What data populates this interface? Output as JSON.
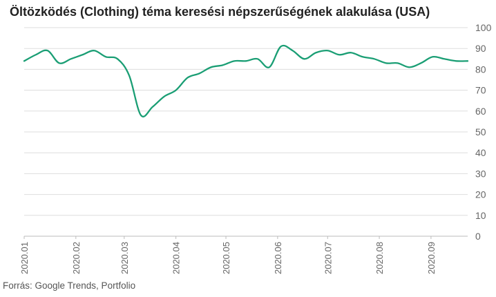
{
  "chart_data": {
    "type": "line",
    "title": "Öltözködés (Clothing) téma keresési népszerűségének alakulása (USA)",
    "source": "Forrás: Google Trends, Portfolio",
    "xlabel": "",
    "ylabel": "",
    "ylim": [
      0,
      100
    ],
    "yticks": [
      0,
      10,
      20,
      30,
      40,
      50,
      60,
      70,
      80,
      90,
      100
    ],
    "grid": true,
    "line_color": "#1a9e74",
    "grid_color": "#dddddd",
    "x_tick_labels": [
      "2020.01",
      "2020.02",
      "2020.03",
      "2020.04",
      "2020.05",
      "2020.06",
      "2020.07",
      "2020.08",
      "2020.09"
    ],
    "x": [
      "2020-01-01",
      "2020-01-08",
      "2020-01-15",
      "2020-01-22",
      "2020-01-29",
      "2020-02-05",
      "2020-02-12",
      "2020-02-19",
      "2020-02-26",
      "2020-03-04",
      "2020-03-11",
      "2020-03-18",
      "2020-03-25",
      "2020-04-01",
      "2020-04-08",
      "2020-04-15",
      "2020-04-22",
      "2020-04-29",
      "2020-05-06",
      "2020-05-13",
      "2020-05-20",
      "2020-05-27",
      "2020-06-03",
      "2020-06-10",
      "2020-06-17",
      "2020-06-24",
      "2020-07-01",
      "2020-07-08",
      "2020-07-15",
      "2020-07-22",
      "2020-07-29",
      "2020-08-05",
      "2020-08-12",
      "2020-08-19",
      "2020-08-26",
      "2020-09-02",
      "2020-09-09",
      "2020-09-16",
      "2020-09-23"
    ],
    "values": [
      84,
      87,
      89,
      83,
      85,
      87,
      89,
      86,
      85,
      77,
      58,
      62,
      67,
      70,
      76,
      78,
      81,
      82,
      84,
      84,
      85,
      81,
      91,
      89,
      85,
      88,
      89,
      87,
      88,
      86,
      85,
      83,
      83,
      81,
      83,
      86,
      85,
      84,
      84
    ]
  }
}
